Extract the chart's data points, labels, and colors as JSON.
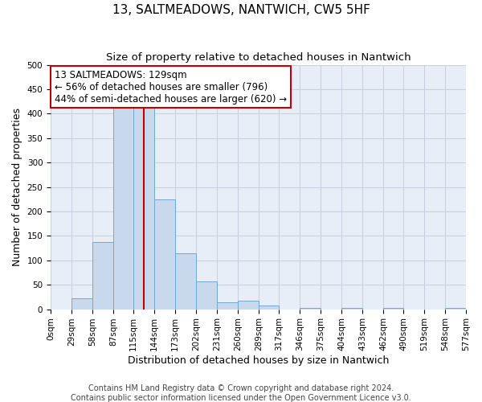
{
  "title": "13, SALTMEADOWS, NANTWICH, CW5 5HF",
  "subtitle": "Size of property relative to detached houses in Nantwich",
  "xlabel": "Distribution of detached houses by size in Nantwich",
  "ylabel": "Number of detached properties",
  "bin_edges": [
    0,
    29,
    58,
    87,
    115,
    144,
    173,
    202,
    231,
    260,
    289,
    317,
    346,
    375,
    404,
    433,
    462,
    490,
    519,
    548,
    577
  ],
  "bar_heights": [
    0,
    22,
    138,
    415,
    415,
    224,
    115,
    57,
    14,
    17,
    7,
    0,
    2,
    0,
    2,
    0,
    2,
    0,
    0,
    2
  ],
  "bar_color": "#c8d9ee",
  "bar_edge_color": "#6fa8d6",
  "vline_x": 129,
  "vline_color": "#c00000",
  "annotation_title": "13 SALTMEADOWS: 129sqm",
  "annotation_line1": "← 56% of detached houses are smaller (796)",
  "annotation_line2": "44% of semi-detached houses are larger (620) →",
  "annotation_box_color": "#ffffff",
  "annotation_box_edge": "#c00000",
  "ylim": [
    0,
    500
  ],
  "xlim": [
    0,
    577
  ],
  "tick_labels": [
    "0sqm",
    "29sqm",
    "58sqm",
    "87sqm",
    "115sqm",
    "144sqm",
    "173sqm",
    "202sqm",
    "231sqm",
    "260sqm",
    "289sqm",
    "317sqm",
    "346sqm",
    "375sqm",
    "404sqm",
    "433sqm",
    "462sqm",
    "490sqm",
    "519sqm",
    "548sqm",
    "577sqm"
  ],
  "tick_positions": [
    0,
    29,
    58,
    87,
    115,
    144,
    173,
    202,
    231,
    260,
    289,
    317,
    346,
    375,
    404,
    433,
    462,
    490,
    519,
    548,
    577
  ],
  "footer_line1": "Contains HM Land Registry data © Crown copyright and database right 2024.",
  "footer_line2": "Contains public sector information licensed under the Open Government Licence v3.0.",
  "plot_bg_color": "#e8eef7",
  "fig_bg_color": "#ffffff",
  "grid_color": "#c5cfe0",
  "title_fontsize": 11,
  "subtitle_fontsize": 9.5,
  "axis_label_fontsize": 9,
  "tick_fontsize": 7.5,
  "annotation_fontsize": 8.5,
  "footer_fontsize": 7
}
